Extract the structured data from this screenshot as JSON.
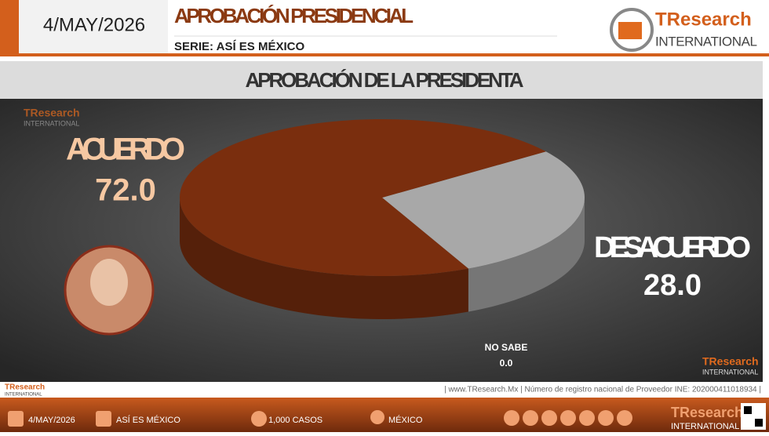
{
  "header": {
    "date": "4/MAY/2026",
    "title": "APROBACIÓN PRESIDENCIAL",
    "subtitle": "SERIE: ASÍ ES MÉXICO",
    "logo_name": "TResearch",
    "logo_sub": "INTERNATIONAL"
  },
  "chart_data": {
    "type": "pie",
    "title": "APROBACIÓN DE LA PRESIDENTA",
    "categories": [
      "DESACUERDO",
      "NO SABE",
      "ACUERDO"
    ],
    "values": [
      28.0,
      0.0,
      72.0
    ],
    "value_labels": [
      "28.0",
      "0.0",
      "72.0"
    ],
    "colors": [
      "#a8a8a8",
      "#ffffff",
      "#7a2e0e"
    ]
  },
  "footer": {
    "info": "| www.TResearch.Mx | Número de registro nacional de Proveedor INE: 202000411018934 |",
    "items": [
      "4/MAY/2026",
      "ASÍ ES MÉXICO",
      "1,000 CASOS",
      "MÉXICO"
    ]
  }
}
